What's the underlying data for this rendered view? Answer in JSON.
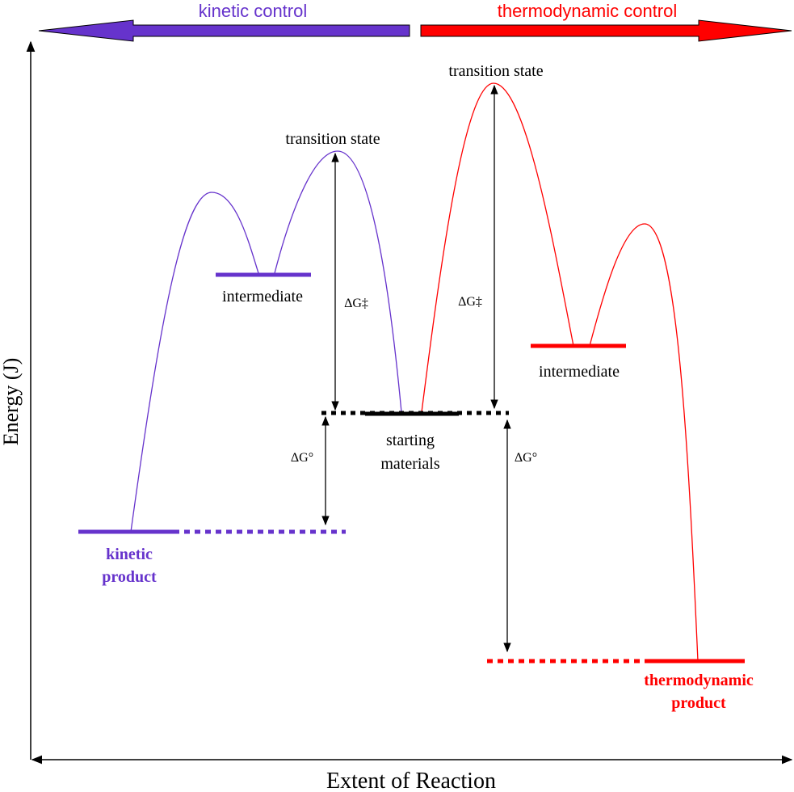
{
  "header": {
    "kinetic_control": "kinetic control",
    "thermodynamic_control": "thermodynamic control"
  },
  "axes": {
    "y_label": "Energy (J)",
    "x_label": "Extent of Reaction"
  },
  "states": {
    "transition_state_kinetic": "transition state",
    "transition_state_thermo": "transition state",
    "intermediate_kinetic": "intermediate",
    "intermediate_thermo": "intermediate",
    "starting_materials": [
      "starting",
      "materials"
    ],
    "kinetic_product": [
      "kinetic",
      "product"
    ],
    "thermodynamic_product": [
      "thermodynamic",
      "product"
    ]
  },
  "energies": {
    "activation_kinetic": "ΔG‡",
    "activation_thermo": "ΔG‡",
    "free_energy_kinetic": "ΔG°",
    "free_energy_thermo": "ΔG°"
  }
}
